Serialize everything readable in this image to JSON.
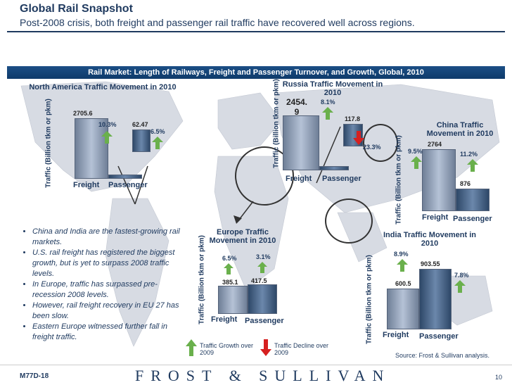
{
  "header": {
    "title": "Global Rail Snapshot",
    "subtitle": "Post-2008 crisis, both freight and passenger rail traffic have recovered well across regions."
  },
  "banner": {
    "text": "Rail Market: Length of Railways, Freight and Passenger Turnover,  and Growth, Global, 2010"
  },
  "charts": {
    "north_america": {
      "title": "North America Traffic Movement in 2010",
      "ylabel": "Traffic (Billion tkm or pkm)",
      "freight_value": "2705.6",
      "freight_growth": "10.3%",
      "passenger_value": "62.47",
      "passenger_growth": "6.5%",
      "x_freight": "Freight",
      "x_passenger": "Passenger"
    },
    "russia": {
      "title": "Russia Traffic Movement in 2010",
      "ylabel": "Traffic (Billion tkm or pkm)",
      "freight_value": "2454. 9",
      "freight_growth": "8.1%",
      "passenger_value": "117.8",
      "passenger_growth": "23.3%",
      "x_freight": "Freight",
      "x_passenger": "Passenger"
    },
    "china": {
      "title": "China Traffic Movement in 2010",
      "ylabel": "Traffic (Billion tkm or pkm)",
      "freight_value": "2764",
      "freight_growth": "9.5%",
      "passenger_value": "876",
      "passenger_growth": "11.2%",
      "x_freight": "Freight",
      "x_passenger": "Passenger"
    },
    "europe": {
      "title": "Europe Traffic Movement in 2010",
      "ylabel": "Traffic (Billion tkm or pkm)",
      "freight_value": "385.1",
      "freight_growth": "6.5%",
      "passenger_value": "417.5",
      "passenger_growth": "3.1%",
      "x_freight": "Freight",
      "x_passenger": "Passenger"
    },
    "india": {
      "title": "India Traffic Movement in 2010",
      "ylabel": "Traffic (Billion tkm or pkm)",
      "freight_value": "600.5",
      "freight_growth": "8.9%",
      "passenger_value": "903.55",
      "passenger_growth": "7.8%",
      "x_freight": "Freight",
      "x_passenger": "Passenger"
    }
  },
  "bullets": [
    "China and India are the fastest-growing rail markets.",
    "U.S. rail freight has registered the biggest growth, but is yet to surpass 2008 traffic levels.",
    "In Europe, traffic has surpassed pre-recession 2008 levels.",
    "However, rail freight recovery in EU 27 has been slow.",
    "Eastern Europe witnessed further fall in freight traffic."
  ],
  "legend": {
    "growth": "Traffic Growth over 2009",
    "decline": "Traffic Decline over 2009"
  },
  "source": "Source: Frost & Sullivan analysis.",
  "footer": {
    "code": "M77D-18",
    "brand": "FROST & SULLIVAN",
    "page": "10"
  },
  "colors": {
    "brand": "#1f3a5f",
    "banner": "#1c4f86",
    "growth_arrow": "#6ab04c",
    "decline_arrow": "#d62020"
  },
  "icons": {
    "up": "green-up-arrow-icon",
    "down": "red-down-arrow-icon"
  }
}
